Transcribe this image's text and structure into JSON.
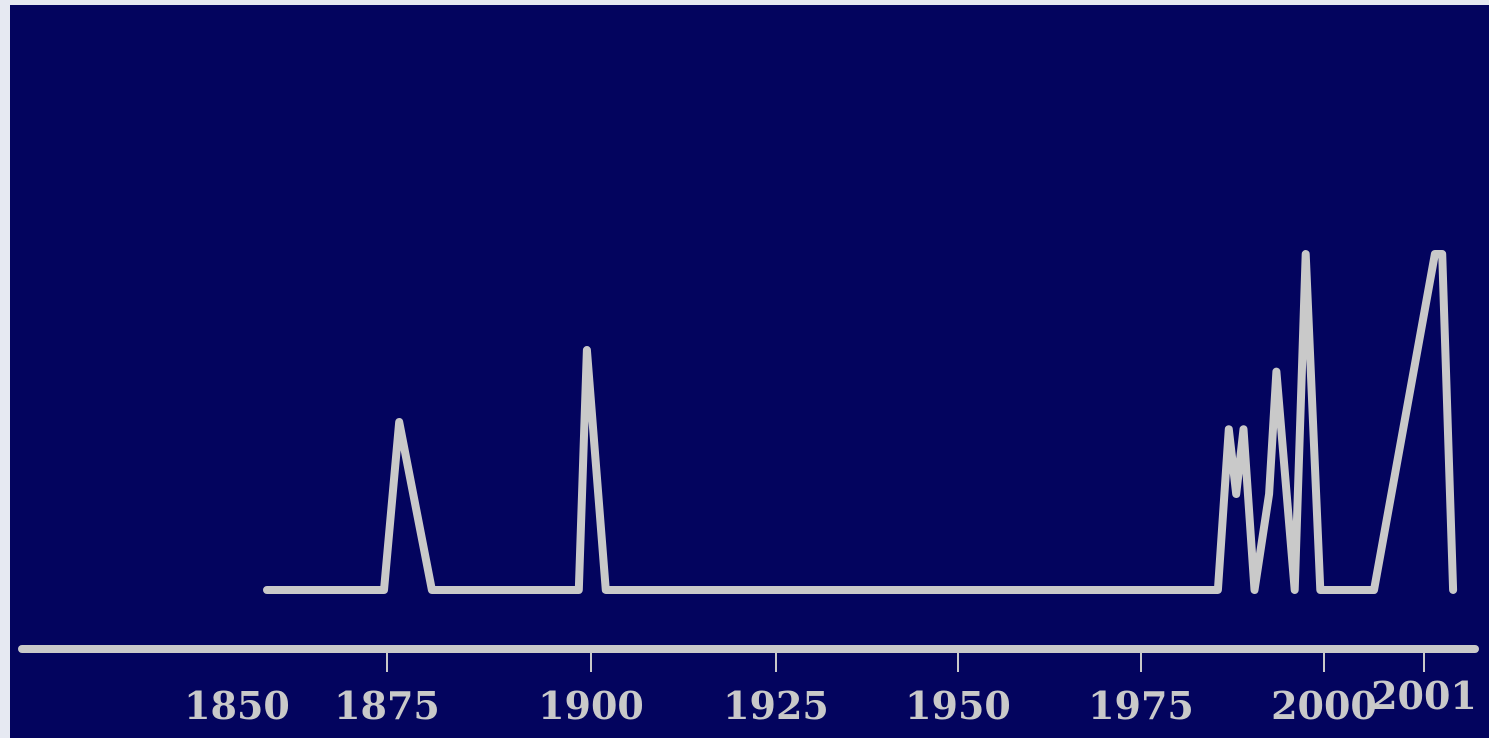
{
  "colors": {
    "page": "#e6e9f2",
    "plot_background": "#03045e",
    "line": "#c9c9c9",
    "tick_labels": "#c9c9c9"
  },
  "chart_data": {
    "type": "line",
    "title": "",
    "xlabel": "",
    "ylabel": "",
    "grid": false,
    "legend": "none",
    "x_axis_ticks": [
      {
        "value": 1850,
        "label": "1850"
      },
      {
        "value": 1875,
        "label": "1875"
      },
      {
        "value": 1900,
        "label": "1900"
      },
      {
        "value": 1925,
        "label": "1925"
      },
      {
        "value": 1950,
        "label": "1950"
      },
      {
        "value": 1975,
        "label": "1975"
      },
      {
        "value": 2000,
        "label": "2000"
      },
      {
        "value": 2001,
        "label": "2001"
      }
    ],
    "xlim": [
      1850,
      2015
    ],
    "ylim": [
      0,
      10
    ],
    "series": [
      {
        "points": [
          [
            1855,
            0
          ],
          [
            1874.5,
            0
          ],
          [
            1876.5,
            7
          ],
          [
            1880.5,
            0
          ],
          [
            1897.5,
            0
          ],
          [
            1898.5,
            0
          ],
          [
            1899.5,
            10
          ],
          [
            1902,
            0
          ],
          [
            1985.5,
            0
          ],
          [
            1987,
            6.7
          ],
          [
            1988,
            4
          ],
          [
            1989,
            6.7
          ],
          [
            1990.5,
            0
          ],
          [
            1992.5,
            4
          ],
          [
            1993.5,
            9.1
          ],
          [
            1996,
            0
          ],
          [
            1997.5,
            14
          ],
          [
            1999.5,
            0
          ],
          [
            2000.5,
            0
          ],
          [
            2004,
            14
          ],
          [
            2006,
            14
          ],
          [
            2009,
            0
          ]
        ]
      }
    ]
  }
}
